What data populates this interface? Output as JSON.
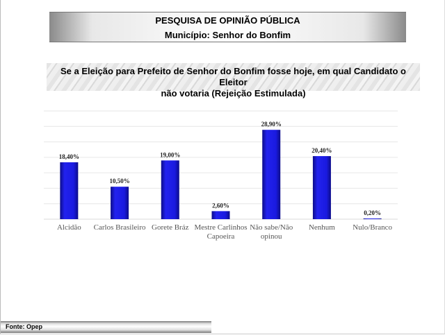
{
  "header": {
    "title": "PESQUISA DE OPINIÃO PÚBLICA",
    "subtitle": "Município: Senhor do Bonfim"
  },
  "question": {
    "line1": "Se a Eleição para Prefeito de Senhor do Bonfim fosse hoje, em qual Candidato o Eleitor",
    "line2": "não votaria (Rejeição Estimulada)"
  },
  "footer": {
    "source": "Fonte: Opep"
  },
  "colors": {
    "bar": "#1a1ae6",
    "bar_dark": "#0c0c8a",
    "grid": "#e6e6e6"
  },
  "chart_data": {
    "type": "bar",
    "title": "Se a Eleição para Prefeito de Senhor do Bonfim fosse hoje, em qual Candidato o Eleitor não votaria (Rejeição Estimulada)",
    "categories": [
      [
        "Alcidão"
      ],
      [
        "Carlos Brasileiro"
      ],
      [
        "Gorete Bráz"
      ],
      [
        "Mestre Carlinhos",
        "Capoeira"
      ],
      [
        "Não sabe/Não",
        "opinou"
      ],
      [
        "Nenhum"
      ],
      [
        "Nulo/Branco"
      ]
    ],
    "values": [
      18.4,
      10.5,
      19.0,
      2.6,
      28.9,
      20.4,
      0.2
    ],
    "labels": [
      "18,40%",
      "10,50%",
      "19,00%",
      "2,60%",
      "28,90%",
      "20,40%",
      "0,20%"
    ],
    "ylim": [
      0,
      35
    ],
    "grid_step": 5,
    "grid": true,
    "xlabel": "",
    "ylabel": ""
  }
}
